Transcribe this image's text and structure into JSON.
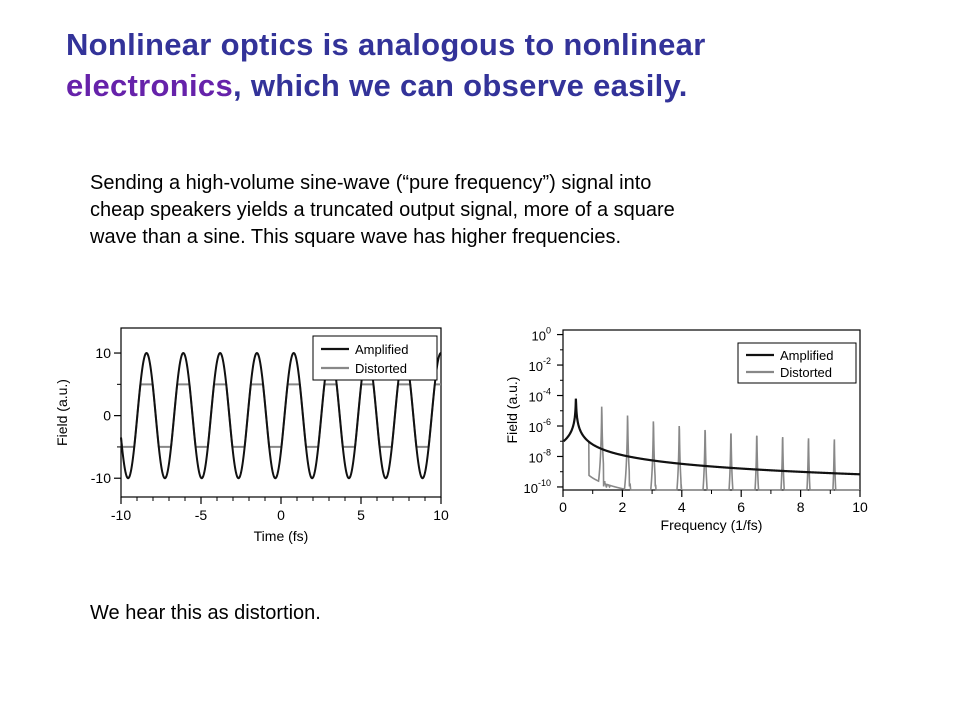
{
  "slide": {
    "title_part1": "Nonlinear optics is analogous to nonlinear",
    "title_accent": "electronics",
    "title_part2": ", which we can observe easily.",
    "paragraph_lines": [
      "Sending a high-volume sine-wave (“pure frequency”) signal into",
      "cheap speakers yields a truncated output signal, more of a square",
      "wave than a sine.  This square wave has higher frequencies."
    ],
    "footer": "We hear this as distortion."
  },
  "colors": {
    "title": "#333399",
    "accent": "#6622aa",
    "amplified": "#111111",
    "distorted": "#888888"
  },
  "chart_data": [
    {
      "type": "line",
      "xlabel": "Time (fs)",
      "ylabel": "Field (a.u.)",
      "xlim": [
        -10,
        10
      ],
      "ylim": [
        -13,
        14
      ],
      "xticks": [
        -10,
        -5,
        0,
        5,
        10
      ],
      "yticks": [
        -10,
        0,
        10
      ],
      "legend": "top-right",
      "series": [
        {
          "name": "Amplified",
          "description": "sine wave, amplitude 10, period ~2.3 fs"
        },
        {
          "name": "Distorted",
          "description": "same sine clipped at ±5"
        }
      ]
    },
    {
      "type": "line",
      "xlabel": "Frequency (1/fs)",
      "ylabel": "Field (a.u.)",
      "xlim": [
        0,
        10
      ],
      "ylim_log10": [
        -10.2,
        0.3
      ],
      "xticks": [
        0,
        2,
        4,
        6,
        8,
        10
      ],
      "ytick_labels": [
        {
          "base": "10",
          "exp": "0",
          "value": 0
        },
        {
          "base": "10",
          "exp": "-2",
          "value": -2
        },
        {
          "base": "10",
          "exp": "-4",
          "value": -4
        },
        {
          "base": "10",
          "exp": "-6",
          "value": -6
        },
        {
          "base": "10",
          "exp": "-8",
          "value": -8
        },
        {
          "base": "10",
          "exp": "-10",
          "value": -10
        }
      ],
      "log_y": true,
      "legend": "top-right",
      "series": [
        {
          "name": "Amplified",
          "description": "single peak near 0.43 with smooth decay"
        },
        {
          "name": "Distorted",
          "description": "peaks at odd harmonics ~0.43, 1.3, 2.2, 3.0, 3.9, 4.8, 5.6, 6.5, 7.4, 8.2, 9.1"
        }
      ]
    }
  ]
}
